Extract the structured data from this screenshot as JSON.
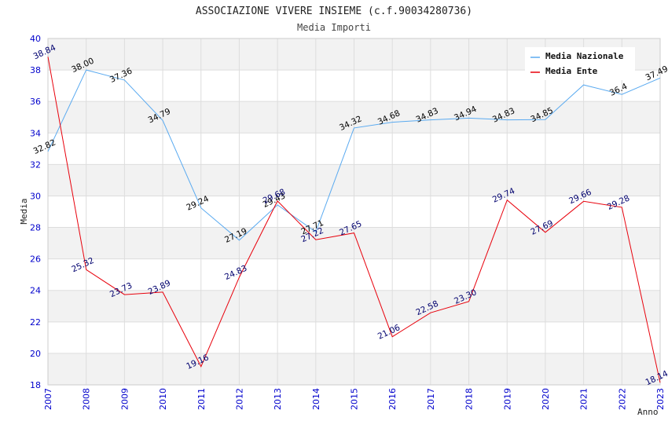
{
  "chart_data": {
    "type": "line",
    "title": "ASSOCIAZIONE VIVERE INSIEME (c.f.90034280736)",
    "subtitle": "Media Importi",
    "xlabel": "Anno",
    "ylabel": "Media",
    "ylim": [
      18,
      40
    ],
    "yticks": [
      "18",
      "20",
      "22",
      "24",
      "26",
      "28",
      "30",
      "32",
      "34",
      "36",
      "38",
      "40"
    ],
    "x": [
      "2007",
      "2008",
      "2009",
      "2010",
      "2011",
      "2012",
      "2013",
      "2014",
      "2015",
      "2016",
      "2017",
      "2018",
      "2019",
      "2020",
      "2021",
      "2022",
      "2023"
    ],
    "grid": true,
    "legend_position": "top-right",
    "colors": {
      "nazionale": "#5aaaf0",
      "ente": "#e8000b",
      "tick_text": "#0000cc",
      "ente_label": "#00006e",
      "band": "#f2f2f2",
      "gridline": "#dddddd"
    },
    "series": [
      {
        "name": "Media Nazionale",
        "values": [
          32.82,
          38.0,
          37.36,
          34.79,
          29.24,
          27.19,
          29.43,
          27.71,
          34.32,
          34.68,
          34.83,
          34.94,
          34.83,
          34.85,
          37.05,
          36.45,
          37.49
        ],
        "labels": [
          "32.82",
          "38.00",
          "37.36",
          "34.79",
          "29.24",
          "27.19",
          "29.43",
          "27.71",
          "34.32",
          "34.68",
          "34.83",
          "34.94",
          "34.83",
          "34.85",
          "",
          "36.4",
          "37.49"
        ]
      },
      {
        "name": "Media Ente",
        "values": [
          38.84,
          25.32,
          23.73,
          23.89,
          19.16,
          24.83,
          29.68,
          27.22,
          27.65,
          21.06,
          22.58,
          23.3,
          29.74,
          27.69,
          29.66,
          29.28,
          18.14
        ],
        "labels": [
          "38.84",
          "25.32",
          "23.73",
          "23.89",
          "19.16",
          "24.83",
          "29.68",
          "27.22",
          "27.65",
          "21.06",
          "22.58",
          "23.30",
          "29.74",
          "27.69",
          "29.66",
          "29.28",
          "18.14"
        ]
      }
    ]
  }
}
